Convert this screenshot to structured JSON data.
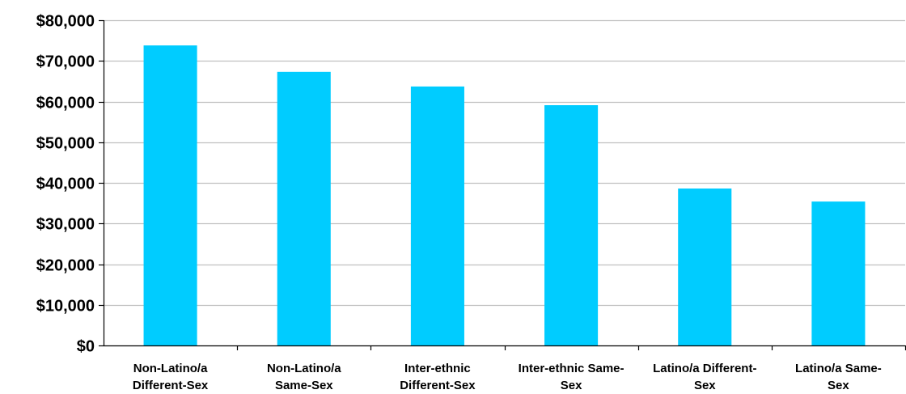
{
  "chart_data": {
    "type": "bar",
    "title": "",
    "xlabel": "",
    "ylabel": "",
    "categories": [
      [
        "Non-Latino/a",
        "Different-Sex"
      ],
      [
        "Non-Latino/a",
        "Same-Sex"
      ],
      [
        "Inter-ethnic",
        "Different-Sex"
      ],
      [
        "Inter-ethnic Same-",
        "Sex"
      ],
      [
        "Latino/a Different-",
        "Sex"
      ],
      [
        "Latino/a  Same-",
        "Sex"
      ]
    ],
    "values": [
      73800,
      67300,
      63700,
      59100,
      38600,
      35400
    ],
    "ylim": [
      0,
      80000
    ],
    "yticks": [
      0,
      10000,
      20000,
      30000,
      40000,
      50000,
      60000,
      70000,
      80000
    ],
    "ytick_labels": [
      "$0",
      "$10,000",
      "$20,000",
      "$30,000",
      "$40,000",
      "$50,000",
      "$60,000",
      "$70,000",
      "$80,000"
    ],
    "grid": true,
    "legend": "none",
    "bar_color": "#00CCFF",
    "grid_color": "#C0C0C0",
    "axis_color": "#000000"
  }
}
